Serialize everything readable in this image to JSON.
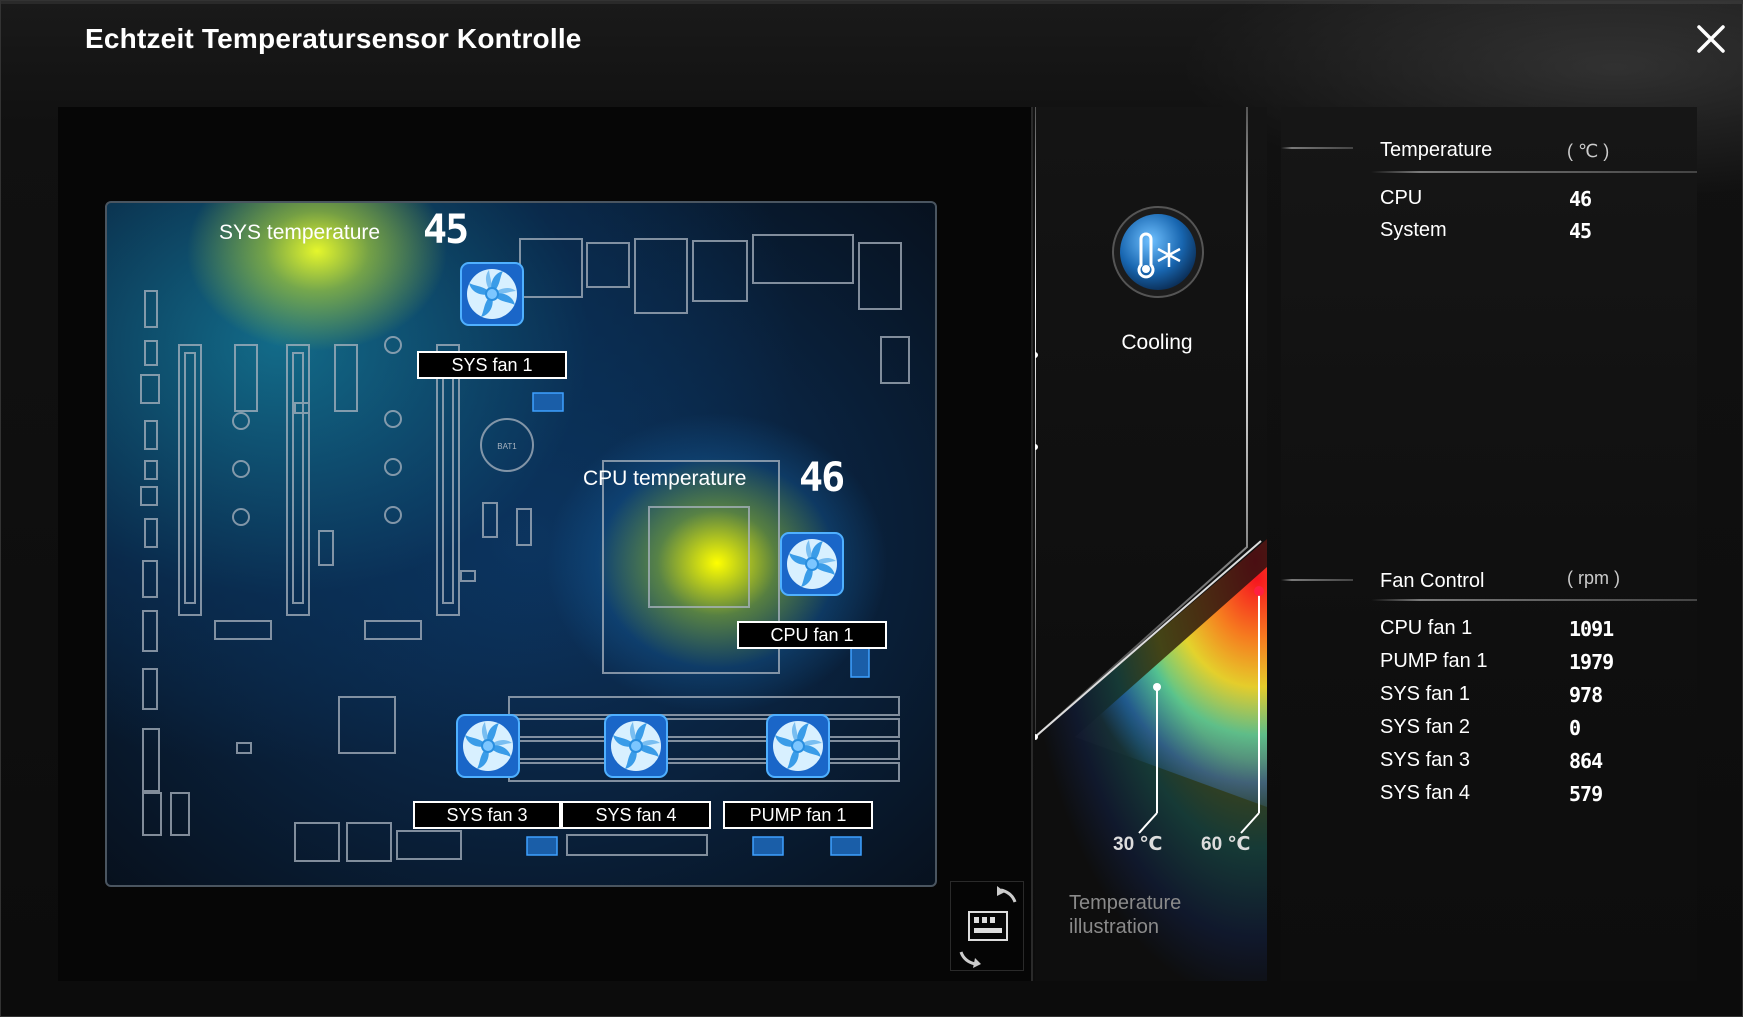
{
  "window": {
    "title": "Echtzeit Temperatursensor Kontrolle"
  },
  "board": {
    "sys_temp_label": "SYS temperature",
    "sys_temp_value": "45",
    "cpu_temp_label": "CPU temperature",
    "cpu_temp_value": "46",
    "battery_label": "BAT1",
    "fans": {
      "sys_fan_1": "SYS fan 1",
      "cpu_fan_1": "CPU fan 1",
      "sys_fan_3": "SYS fan 3",
      "sys_fan_4": "SYS fan 4",
      "pump_fan_1": "PUMP fan 1"
    }
  },
  "mode": {
    "label": "Cooling",
    "scale_low": "30 ℃",
    "scale_high": "60 ℃",
    "illustration_label_1": "Temperature",
    "illustration_label_2": "illustration"
  },
  "temperature": {
    "title": "Temperature",
    "unit": "( ℃ )",
    "rows": [
      {
        "label": "CPU",
        "value": "46"
      },
      {
        "label": "System",
        "value": "45"
      }
    ]
  },
  "fan_control": {
    "title": "Fan Control",
    "unit": "( rpm )",
    "rows": [
      {
        "label": "CPU fan 1",
        "value": "1091"
      },
      {
        "label": "PUMP fan 1",
        "value": "1979"
      },
      {
        "label": "SYS fan 1",
        "value": "978"
      },
      {
        "label": "SYS fan 2",
        "value": "0"
      },
      {
        "label": "SYS fan 3",
        "value": "864"
      },
      {
        "label": "SYS fan 4",
        "value": "579"
      }
    ]
  },
  "colors": {
    "accent_blue": "#2a8fe0",
    "hot_red": "#ff2040",
    "warm_yellow": "#f5ff20"
  }
}
